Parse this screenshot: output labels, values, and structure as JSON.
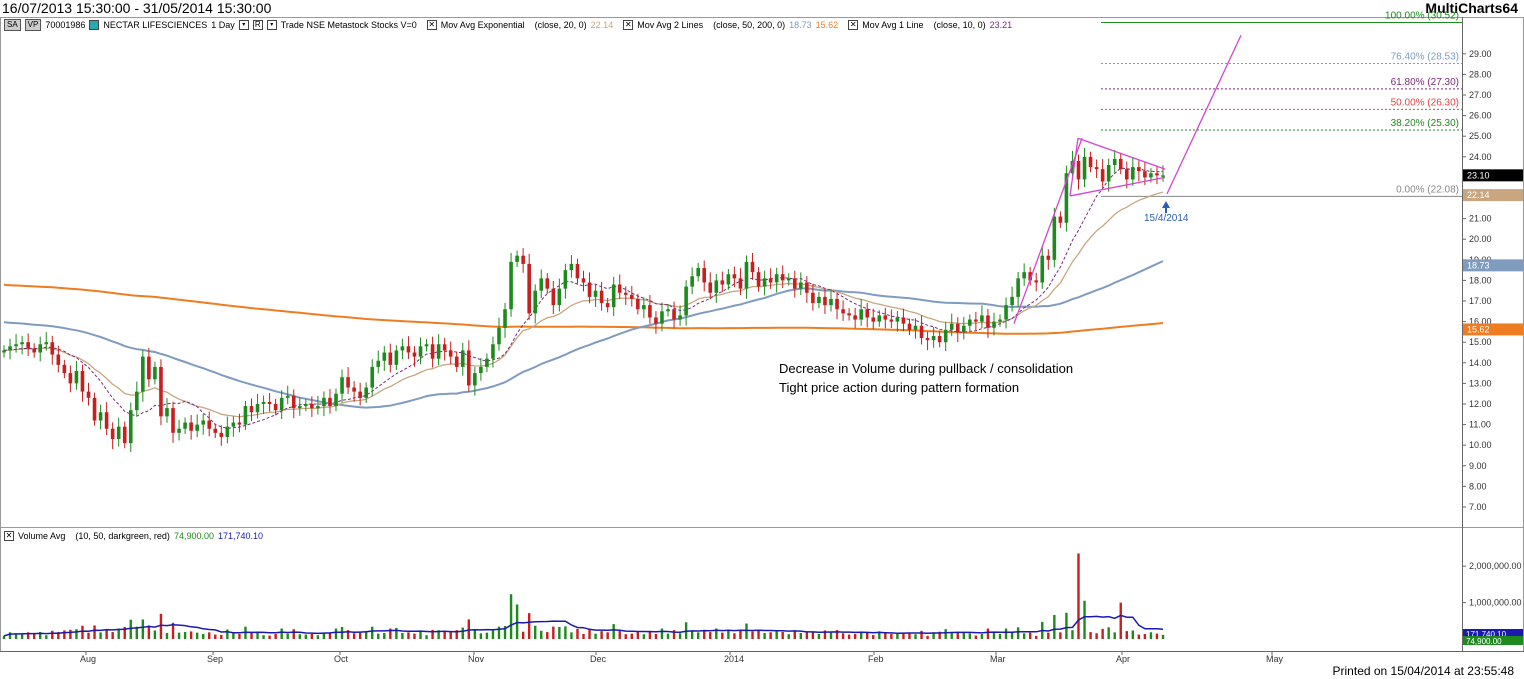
{
  "header": {
    "date_range": "16/07/2013 15:30:00 - 31/05/2014 15:30:00",
    "brand": "MultiCharts64"
  },
  "status_bar": {
    "chip1": "SA",
    "chip2": "VP",
    "symbol_id": "70001986",
    "name": "NECTAR LIFESCIENCES",
    "interval": "1 Day",
    "source": "Trade  NSE  Metastock  Stocks  V=0",
    "ind1_name": "Mov Avg Exponential",
    "ind1_params": "(close,  20,  0)",
    "ind1_value": "22.14",
    "ind2_name": "Mov Avg 2 Lines",
    "ind2_params": "(close,  50,  200,  0)",
    "ind2_v1": "18.73",
    "ind2_v2": "15.62",
    "ind3_name": "Mov Avg 1 Line",
    "ind3_params": "(close,  10,  0)",
    "ind3_value": "23.21"
  },
  "volume_status": {
    "name": "Volume Avg",
    "params": "(10,  50,  darkgreen,  red)",
    "v1": "74,900.00",
    "v2": "171,740.10"
  },
  "footer": {
    "printed": "Printed on 15/04/2014 at 23:55:48"
  },
  "colors": {
    "up": "#1e8a1e",
    "down": "#c81e1e",
    "ema20": "#c9a680",
    "ma50": "#7f9cbf",
    "ma200": "#ee7d22",
    "ma10": "#7a2a7a",
    "pattern": "#d444d4",
    "volume_avg": "#1a1ab0",
    "label_last": "#000000",
    "label_ema20": "#c9a680",
    "label_ma50": "#7f9cbf",
    "label_ma200": "#ee7d22"
  },
  "annotations": {
    "note1": "Decrease in Volume during pullback / consolidation",
    "note2": "Tight price action during pattern formation",
    "arrow_date": "15/4/2014"
  },
  "chart_data": {
    "type": "candlestick",
    "title": "",
    "x_ticks": [
      "Aug",
      "Sep",
      "Oct",
      "Nov",
      "Dec",
      "2014",
      "Feb",
      "Mar",
      "Apr",
      "May"
    ],
    "y_ticks": [
      "7.00",
      "8.00",
      "9.00",
      "10.00",
      "11.00",
      "12.00",
      "13.00",
      "14.00",
      "15.00",
      "16.00",
      "17.00",
      "18.00",
      "19.00",
      "20.00",
      "21.00",
      "22.00",
      "23.00",
      "24.00",
      "25.00",
      "26.00",
      "27.00",
      "28.00",
      "29.00"
    ],
    "ylim": [
      6.5,
      30.5
    ],
    "price_labels": [
      {
        "text": "23.10",
        "value": 23.1,
        "color_key": "label_last"
      },
      {
        "text": "22.14",
        "value": 22.14,
        "color_key": "label_ema20"
      },
      {
        "text": "18.73",
        "value": 18.73,
        "color_key": "label_ma50"
      },
      {
        "text": "15.62",
        "value": 15.62,
        "color_key": "label_ma200"
      }
    ],
    "fibonacci": [
      {
        "label": "100.00% (30.52)",
        "value": 30.52,
        "color": "#1e8a1e"
      },
      {
        "label": "76.40% (28.53)",
        "value": 28.53,
        "color": "#7f9cbf"
      },
      {
        "label": "61.80% (27.30)",
        "value": 27.3,
        "color": "#7a2a7a"
      },
      {
        "label": "50.00% (26.30)",
        "value": 26.3,
        "color": "#e84040"
      },
      {
        "label": "38.20% (25.30)",
        "value": 25.3,
        "color": "#1e8a1e"
      },
      {
        "label": "0.00% (22.08)",
        "value": 22.08,
        "color": "#888888"
      }
    ],
    "series": [
      {
        "name": "Mov Avg Exponential (close, 20, 0)",
        "value": 22.14
      },
      {
        "name": "Mov Avg 2 Lines (close, 50, 200, 0)",
        "value": 18.73
      },
      {
        "name": "Mov Avg 2 Lines (close, 50, 200, 0)",
        "value": 15.62
      },
      {
        "name": "Mov Avg 1 Line (close, 10, 0)",
        "value": 23.21
      }
    ],
    "closes": [
      14.6,
      14.8,
      14.9,
      15.0,
      14.7,
      14.5,
      14.9,
      15.0,
      14.4,
      13.9,
      13.5,
      13.0,
      13.6,
      12.6,
      12.3,
      11.2,
      11.6,
      10.8,
      10.3,
      10.9,
      10.1,
      11.7,
      12.6,
      14.3,
      13.2,
      13.8,
      11.4,
      11.8,
      10.6,
      10.8,
      11.1,
      10.7,
      11.0,
      11.2,
      10.8,
      10.6,
      10.4,
      10.9,
      11.1,
      11.0,
      11.9,
      11.6,
      12.0,
      12.1,
      12.0,
      11.7,
      12.3,
      12.4,
      11.8,
      11.9,
      12.0,
      11.8,
      11.9,
      12.3,
      11.9,
      12.5,
      13.3,
      12.8,
      12.6,
      12.3,
      12.8,
      13.8,
      14.1,
      14.5,
      13.9,
      14.6,
      14.8,
      14.5,
      14.3,
      14.8,
      14.9,
      14.2,
      14.9,
      14.6,
      14.3,
      13.8,
      14.6,
      12.9,
      13.5,
      13.8,
      14.2,
      14.9,
      15.7,
      16.6,
      18.9,
      19.2,
      18.8,
      16.4,
      17.5,
      18.1,
      17.6,
      16.8,
      17.6,
      18.5,
      18.8,
      18.1,
      17.9,
      17.2,
      17.5,
      16.9,
      16.7,
      17.8,
      17.4,
      17.3,
      17.1,
      16.6,
      16.8,
      16.2,
      15.9,
      16.5,
      16.6,
      16.1,
      16.3,
      17.7,
      18.2,
      18.6,
      17.9,
      17.4,
      18.0,
      17.8,
      18.3,
      18.1,
      17.6,
      18.9,
      18.4,
      17.7,
      18.1,
      17.9,
      18.3,
      18.0,
      18.1,
      17.6,
      17.9,
      17.4,
      16.9,
      17.2,
      16.8,
      17.1,
      16.6,
      16.4,
      16.3,
      16.1,
      16.6,
      16.2,
      16.0,
      16.3,
      16.1,
      16.0,
      16.2,
      15.9,
      15.6,
      15.8,
      15.2,
      15.1,
      15.3,
      15.0,
      15.6,
      15.9,
      15.5,
      15.8,
      16.1,
      16.0,
      16.3,
      15.7,
      16.0,
      16.1,
      16.8,
      17.2,
      18.1,
      18.4,
      18.0,
      17.9,
      19.2,
      19.0,
      21.1,
      20.8,
      23.2,
      23.8,
      22.9,
      24.0,
      23.5,
      23.4,
      22.8,
      23.6,
      23.9,
      23.4,
      22.9,
      23.5,
      23.3,
      23.0,
      23.2,
      23.1,
      23.1
    ],
    "volume_ylim": [
      0,
      2500000
    ],
    "volume_ticks": [
      "2,000,000.00",
      "1,000,000.00"
    ],
    "volume_labels": [
      {
        "text": "171,740.10",
        "value": 171740.1
      },
      {
        "text": "74,900.00",
        "value": 74900
      }
    ]
  }
}
